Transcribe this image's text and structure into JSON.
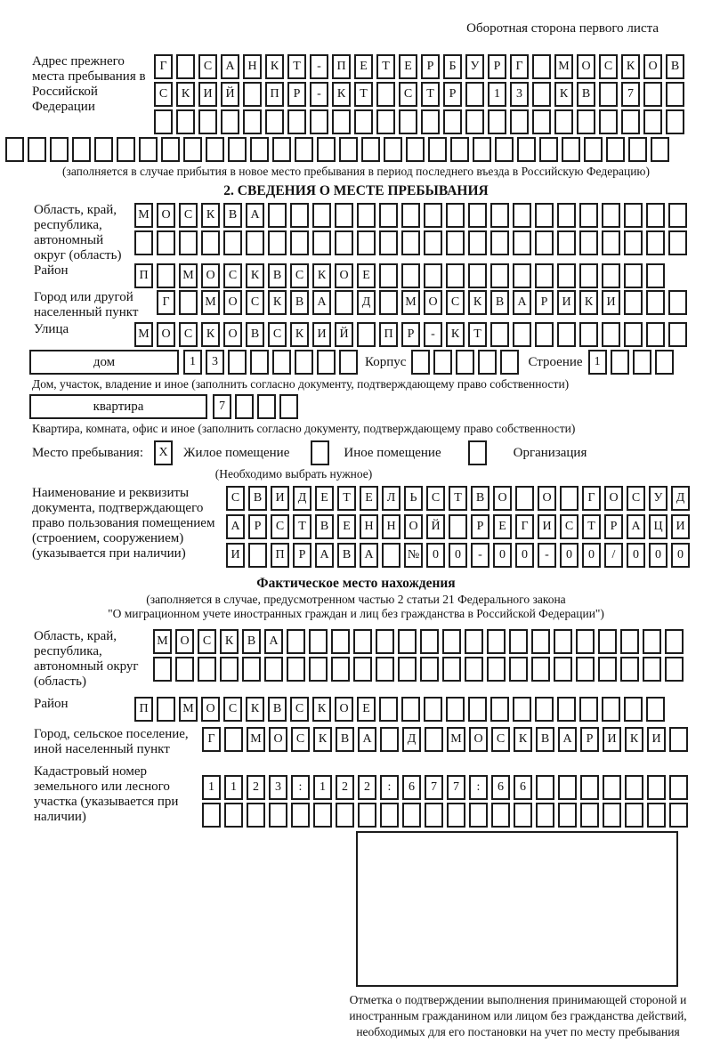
{
  "page": {
    "header_note": "Оборотная сторона первого листа"
  },
  "prev_address": {
    "label": "Адрес прежнего места пребывания в Российской Федерации",
    "rows": [
      {
        "cells": "Г САНКТ-ПЕТЕРБУРГ МОСКОВ",
        "len": 24
      },
      {
        "cells": "СКИЙ ПР-КТ СТР 13 КВ 7",
        "len": 24
      },
      {
        "cells": "",
        "len": 24
      },
      {
        "cells": "",
        "len": 30
      }
    ],
    "note": "(заполняется в случае прибытия в новое место пребывания в период последнего въезда в Российскую Федерацию)"
  },
  "section2": {
    "title": "2. СВЕДЕНИЯ О МЕСТЕ ПРЕБЫВАНИЯ",
    "region": {
      "label": "Область, край, республика, автономный округ (область)",
      "rows": [
        {
          "cells": "МОСКВА",
          "len": 25
        },
        {
          "cells": "",
          "len": 25
        }
      ]
    },
    "district": {
      "label": "Район",
      "row": {
        "cells": "П МОСКВСКОЕ",
        "len": 24
      }
    },
    "city": {
      "label": "Город или другой населенный пункт",
      "row": {
        "cells": "Г МОСКВА Д МОСКВАРИКИ",
        "len": 24
      }
    },
    "street": {
      "label": "Улица",
      "row": {
        "cells": "МОСКОВСКИЙ ПР-КТ",
        "len": 25
      }
    },
    "house": {
      "box_label": "дом",
      "house_cells": {
        "cells": "13",
        "len": 8
      },
      "korpus_label": "Корпус",
      "korpus_cells": {
        "cells": "",
        "len": 5
      },
      "stroenie_label": "Строение",
      "stroenie_cells": {
        "cells": "1",
        "len": 4
      }
    },
    "house_note": "Дом, участок, владение и иное (заполнить согласно документу, подтверждающему право собственности)",
    "apartment": {
      "box_label": "квартира",
      "apt_cells": {
        "cells": "7",
        "len": 4
      }
    },
    "apartment_note": "Квартира, комната, офис и иное (заполнить согласно документу, подтверждающему право собственности)",
    "stay_type": {
      "label": "Место пребывания:",
      "options": [
        {
          "mark": "X",
          "label": "Жилое помещение"
        },
        {
          "mark": "",
          "label": "Иное помещение"
        },
        {
          "mark": "",
          "label": "Организация"
        }
      ],
      "choose_note": "(Необходимо выбрать нужное)"
    },
    "document": {
      "label": "Наименование и реквизиты документа, подтверждающего право пользования помещением (строением, сооружением) (указывается при наличии)",
      "rows": [
        {
          "cells": "СВИДЕТЕЛЬСТВО О ГОСУД",
          "len": 21
        },
        {
          "cells": "АРСТВЕННОЙ РЕГИСТРАЦИ",
          "len": 21
        },
        {
          "cells": "И ПРАВА №00-00-00/000",
          "len": 21
        }
      ]
    }
  },
  "actual_location": {
    "title": "Фактическое место нахождения",
    "note_line1": "(заполняется в случае, предусмотренном частью 2 статьи 21 Федерального закона",
    "note_line2": "\"О миграционном учете иностранных граждан и лиц без гражданства в Российской Федерации\")",
    "region": {
      "label": "Область, край, республика, автономный округ (область)",
      "rows": [
        {
          "cells": "МОСКВА",
          "len": 24
        },
        {
          "cells": "",
          "len": 24
        }
      ]
    },
    "district": {
      "label": "Район",
      "row": {
        "cells": "П МОСКВСКОЕ",
        "len": 24
      }
    },
    "city": {
      "label": "Город, сельское поселение, иной населенный пункт",
      "row": {
        "cells": "Г МОСКВА Д МОСКВАРИКИ",
        "len": 22
      }
    },
    "cadastral": {
      "label": "Кадастровый номер земельного или лесного участка (указывается при наличии)",
      "rows": [
        {
          "cells": "1123:122:677:66",
          "len": 22
        },
        {
          "cells": "",
          "len": 22
        }
      ]
    },
    "stamp_note": "Отметка о подтверждении выполнения принимающей стороной и иностранным гражданином или лицом без гражданства действий, необходимых для его постановки на учет по месту пребывания"
  }
}
